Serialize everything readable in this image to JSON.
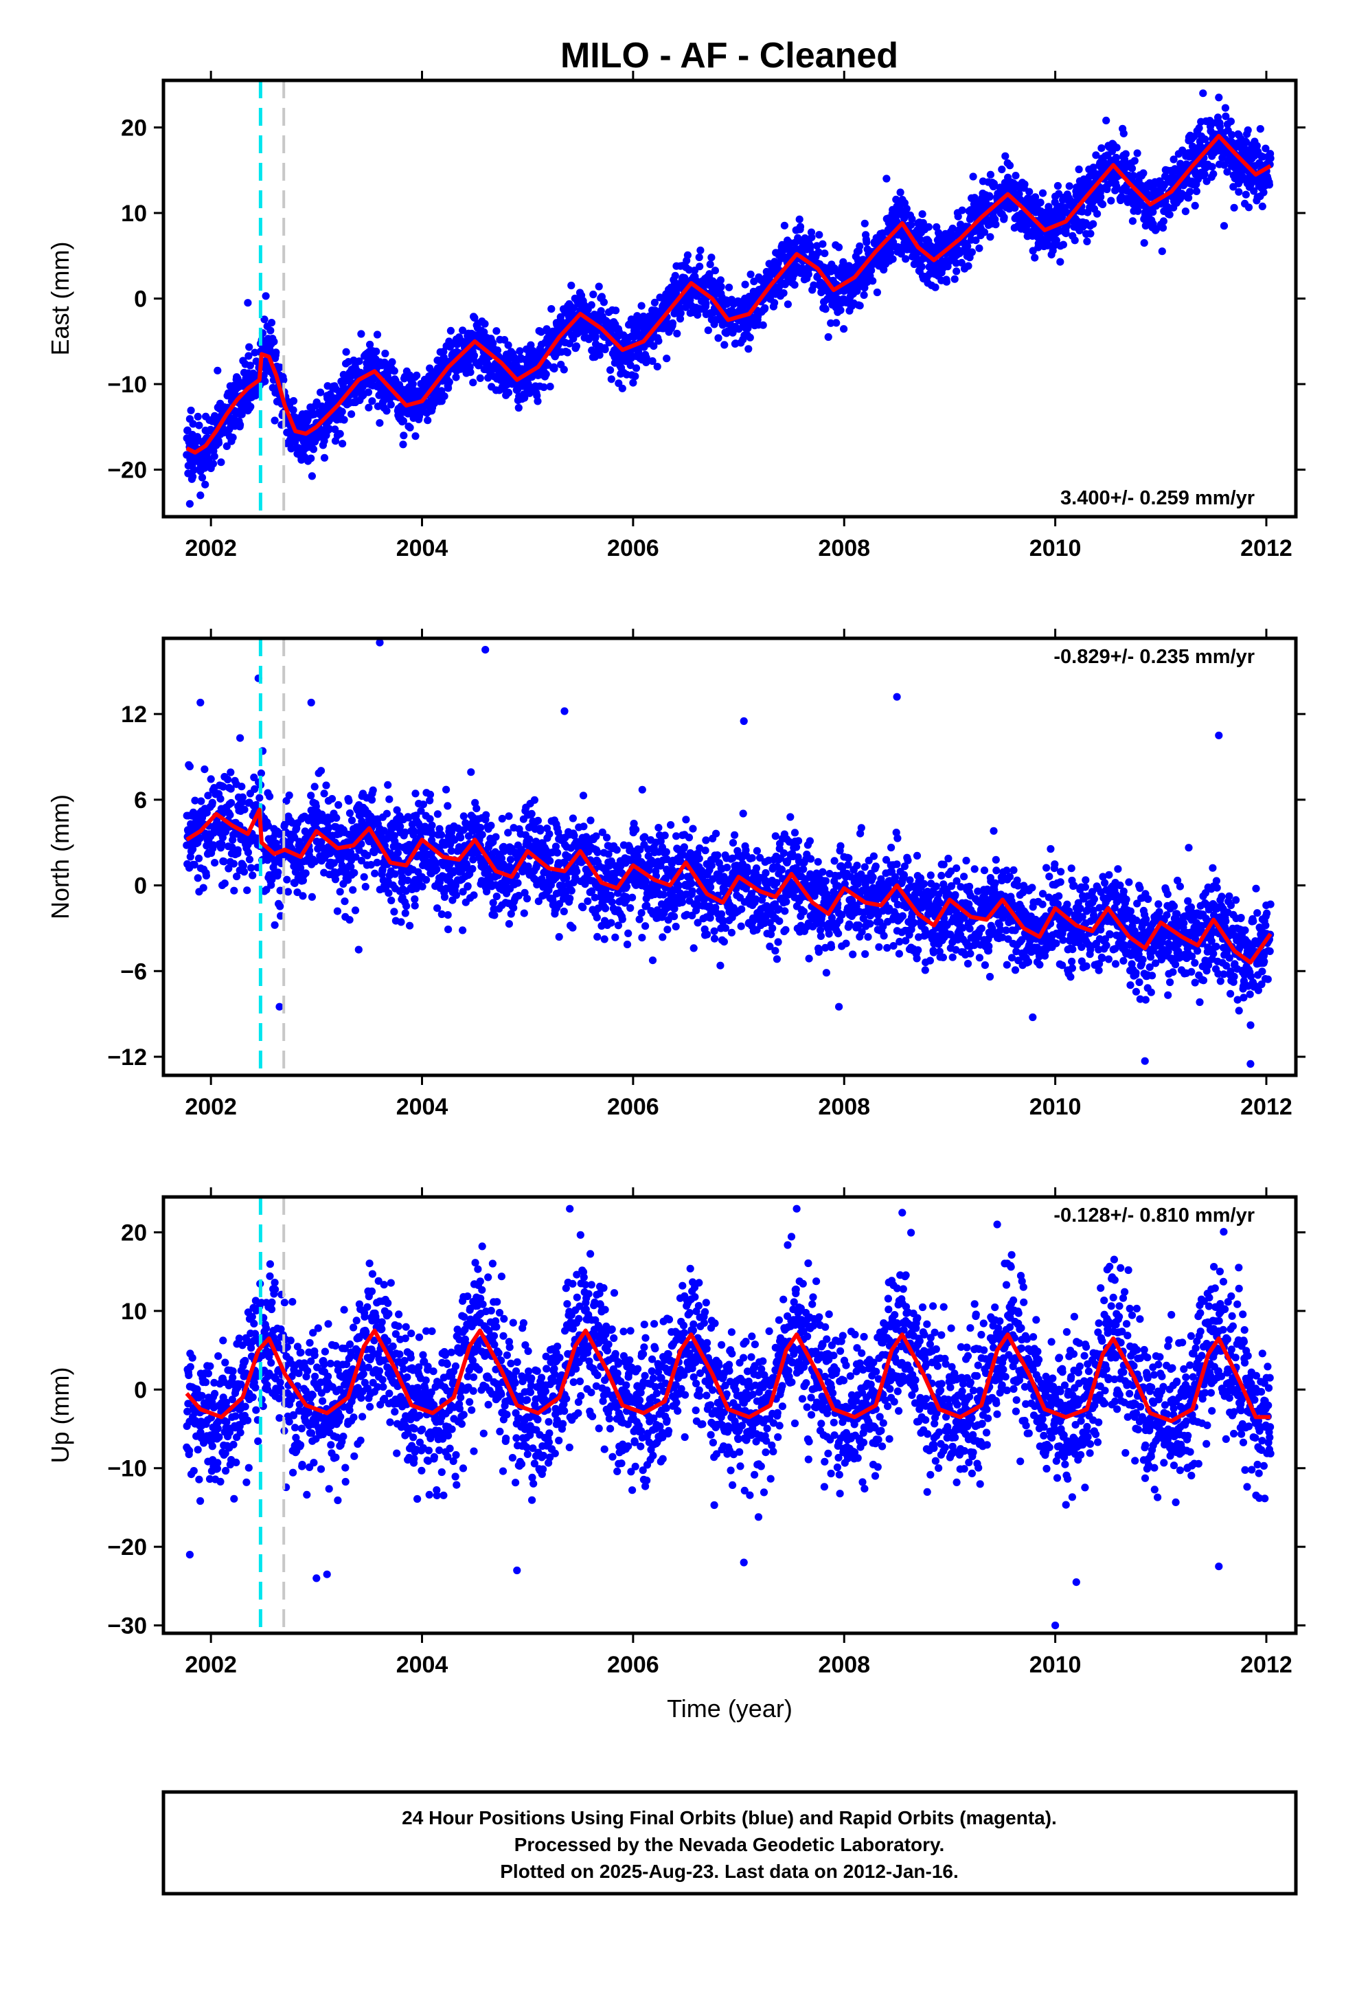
{
  "title": "MILO  - AF - Cleaned",
  "colors": {
    "points": "#0000ff",
    "model": "#ff0000",
    "offset_equipment": "#00e5ee",
    "offset_other": "#c8c8c8",
    "frame": "#000000"
  },
  "footer": {
    "line1": "24 Hour Positions Using Final Orbits (blue) and Rapid Orbits (magenta).",
    "line2": "Processed by the Nevada Geodetic Laboratory.",
    "line3": "Plotted on 2025-Aug-23. Last data on 2012-Jan-16."
  },
  "chart_data": [
    {
      "type": "scatter",
      "component": "east",
      "ylabel": "East (mm)",
      "xlabel": "",
      "xlim": [
        2001.55,
        2012.28
      ],
      "ylim": [
        -25.5,
        25.5
      ],
      "xticks": [
        2002,
        2004,
        2006,
        2008,
        2010,
        2012
      ],
      "yticks": [
        -20,
        -10,
        0,
        10,
        20
      ],
      "rate_text": "3.400+/- 0.259 mm/yr",
      "rate_position": "bottom-right",
      "data_start": 2001.77,
      "data_end": 2012.04,
      "offsets": [
        2002.47,
        2002.69
      ],
      "model": {
        "x": [
          2001.77,
          2001.85,
          2001.95,
          2002.05,
          2002.15,
          2002.25,
          2002.35,
          2002.46,
          2002.48,
          2002.55,
          2002.62,
          2002.7,
          2002.8,
          2002.9,
          2003.0,
          2003.2,
          2003.4,
          2003.55,
          2003.7,
          2003.85,
          2004.0,
          2004.25,
          2004.5,
          2004.75,
          2004.9,
          2005.1,
          2005.3,
          2005.5,
          2005.7,
          2005.9,
          2006.1,
          2006.3,
          2006.55,
          2006.75,
          2006.9,
          2007.1,
          2007.3,
          2007.55,
          2007.75,
          2007.9,
          2008.1,
          2008.3,
          2008.55,
          2008.7,
          2008.85,
          2009.1,
          2009.3,
          2009.55,
          2009.7,
          2009.9,
          2010.1,
          2010.3,
          2010.55,
          2010.7,
          2010.9,
          2011.1,
          2011.3,
          2011.55,
          2011.7,
          2011.9,
          2012.04
        ],
        "y": [
          -17.5,
          -18.0,
          -17.2,
          -15.5,
          -13.5,
          -11.8,
          -10.5,
          -9.5,
          -6.5,
          -6.8,
          -9.0,
          -12.5,
          -15.5,
          -15.8,
          -15.0,
          -12.5,
          -9.5,
          -8.5,
          -10.5,
          -12.5,
          -12.0,
          -8.0,
          -5.0,
          -7.5,
          -9.5,
          -8.0,
          -4.5,
          -1.8,
          -3.5,
          -6.0,
          -5.0,
          -2.0,
          1.8,
          0.0,
          -2.5,
          -1.8,
          1.5,
          5.2,
          3.5,
          1.0,
          2.5,
          5.5,
          8.8,
          6.0,
          4.5,
          7.0,
          9.5,
          12.2,
          10.5,
          8.0,
          9.0,
          12.0,
          15.6,
          13.5,
          11.0,
          12.5,
          15.5,
          19.0,
          17.0,
          14.5,
          15.5
        ]
      },
      "scatter_sigma": 1.8,
      "outliers": [
        {
          "x": 2011.4,
          "y": 24.0
        },
        {
          "x": 2011.55,
          "y": 23.5
        },
        {
          "x": 2002.35,
          "y": -0.5
        },
        {
          "x": 2002.52,
          "y": 0.3
        },
        {
          "x": 2007.85,
          "y": -4.5
        },
        {
          "x": 2011.6,
          "y": 8.5
        },
        {
          "x": 2001.8,
          "y": -24.0
        },
        {
          "x": 2001.9,
          "y": -23.0
        }
      ]
    },
    {
      "type": "scatter",
      "component": "north",
      "ylabel": "North (mm)",
      "xlabel": "",
      "xlim": [
        2001.55,
        2012.28
      ],
      "ylim": [
        -13.3,
        17.3
      ],
      "xticks": [
        2002,
        2004,
        2006,
        2008,
        2010,
        2012
      ],
      "yticks": [
        -12,
        -6,
        0,
        6,
        12
      ],
      "rate_text": "-0.829+/- 0.235 mm/yr",
      "rate_position": "top-right",
      "data_start": 2001.77,
      "data_end": 2012.04,
      "offsets": [
        2002.47,
        2002.69
      ],
      "model": {
        "x": [
          2001.77,
          2001.9,
          2002.05,
          2002.2,
          2002.35,
          2002.46,
          2002.48,
          2002.6,
          2002.7,
          2002.85,
          2003.0,
          2003.2,
          2003.35,
          2003.5,
          2003.7,
          2003.85,
          2004.0,
          2004.2,
          2004.35,
          2004.5,
          2004.7,
          2004.85,
          2005.0,
          2005.2,
          2005.35,
          2005.5,
          2005.7,
          2005.85,
          2006.0,
          2006.2,
          2006.35,
          2006.5,
          2006.7,
          2006.85,
          2007.0,
          2007.2,
          2007.35,
          2007.5,
          2007.7,
          2007.85,
          2008.0,
          2008.2,
          2008.35,
          2008.5,
          2008.7,
          2008.85,
          2009.0,
          2009.2,
          2009.35,
          2009.5,
          2009.7,
          2009.85,
          2010.0,
          2010.2,
          2010.35,
          2010.5,
          2010.7,
          2010.85,
          2011.0,
          2011.2,
          2011.35,
          2011.5,
          2011.7,
          2011.85,
          2012.04
        ],
        "y": [
          3.2,
          3.8,
          5.0,
          4.2,
          3.6,
          5.3,
          3.0,
          2.2,
          2.5,
          2.0,
          3.8,
          2.6,
          2.8,
          4.0,
          1.6,
          1.4,
          3.2,
          2.0,
          1.8,
          3.2,
          1.0,
          0.6,
          2.4,
          1.2,
          1.0,
          2.4,
          0.2,
          -0.2,
          1.4,
          0.4,
          0.0,
          1.6,
          -0.6,
          -1.2,
          0.6,
          -0.4,
          -0.8,
          0.8,
          -1.2,
          -2.0,
          -0.2,
          -1.2,
          -1.4,
          0.0,
          -2.0,
          -2.8,
          -1.0,
          -2.2,
          -2.4,
          -1.0,
          -3.0,
          -3.6,
          -1.6,
          -2.8,
          -3.2,
          -1.6,
          -3.6,
          -4.4,
          -2.6,
          -3.6,
          -4.2,
          -2.4,
          -4.6,
          -5.4,
          -3.4
        ]
      },
      "scatter_sigma": 1.7,
      "outliers": [
        {
          "x": 2003.6,
          "y": 17.0
        },
        {
          "x": 2004.6,
          "y": 16.5
        },
        {
          "x": 2002.45,
          "y": 14.5
        },
        {
          "x": 2001.9,
          "y": 12.8
        },
        {
          "x": 2002.95,
          "y": 12.8
        },
        {
          "x": 2005.35,
          "y": 12.2
        },
        {
          "x": 2007.05,
          "y": 11.5
        },
        {
          "x": 2008.5,
          "y": 13.2
        },
        {
          "x": 2011.55,
          "y": 10.5
        },
        {
          "x": 2003.4,
          "y": -4.5
        },
        {
          "x": 2002.65,
          "y": -8.5
        },
        {
          "x": 2007.95,
          "y": -8.5
        },
        {
          "x": 2010.85,
          "y": -12.3
        },
        {
          "x": 2011.85,
          "y": -12.5
        }
      ]
    },
    {
      "type": "scatter",
      "component": "up",
      "ylabel": "Up (mm)",
      "xlabel": "Time (year)",
      "xlim": [
        2001.55,
        2012.28
      ],
      "ylim": [
        -31.0,
        24.5
      ],
      "xticks": [
        2002,
        2004,
        2006,
        2008,
        2010,
        2012
      ],
      "yticks": [
        -30,
        -20,
        -10,
        0,
        10,
        20
      ],
      "rate_text": "-0.128+/- 0.810 mm/yr",
      "rate_position": "top-right",
      "data_start": 2001.77,
      "data_end": 2012.04,
      "offsets": [
        2002.47,
        2002.69
      ],
      "model": {
        "x": [
          2001.77,
          2001.9,
          2002.1,
          2002.3,
          2002.45,
          2002.55,
          2002.7,
          2002.9,
          2003.1,
          2003.3,
          2003.45,
          2003.55,
          2003.75,
          2003.9,
          2004.1,
          2004.3,
          2004.45,
          2004.55,
          2004.75,
          2004.9,
          2005.1,
          2005.3,
          2005.45,
          2005.55,
          2005.75,
          2005.9,
          2006.1,
          2006.3,
          2006.45,
          2006.55,
          2006.75,
          2006.9,
          2007.1,
          2007.3,
          2007.45,
          2007.55,
          2007.75,
          2007.9,
          2008.1,
          2008.3,
          2008.45,
          2008.55,
          2008.75,
          2008.9,
          2009.1,
          2009.3,
          2009.45,
          2009.55,
          2009.75,
          2009.9,
          2010.1,
          2010.3,
          2010.45,
          2010.55,
          2010.75,
          2010.9,
          2011.1,
          2011.3,
          2011.45,
          2011.55,
          2011.75,
          2011.9,
          2012.04
        ],
        "y": [
          -0.5,
          -2.5,
          -3.5,
          -1.0,
          5.0,
          6.5,
          2.0,
          -2.0,
          -3.0,
          -1.0,
          5.5,
          7.5,
          2.5,
          -2.0,
          -3.0,
          -1.0,
          5.5,
          7.5,
          2.5,
          -2.0,
          -3.0,
          -1.0,
          5.5,
          7.5,
          2.5,
          -2.0,
          -3.0,
          -1.5,
          5.0,
          7.0,
          2.0,
          -2.5,
          -3.5,
          -2.0,
          5.0,
          7.0,
          2.0,
          -2.5,
          -3.5,
          -2.0,
          5.0,
          7.0,
          2.0,
          -2.5,
          -3.5,
          -2.0,
          5.0,
          7.0,
          2.0,
          -2.5,
          -3.5,
          -2.5,
          4.5,
          6.5,
          1.5,
          -3.0,
          -4.0,
          -2.5,
          4.5,
          6.5,
          1.0,
          -3.5,
          -3.5
        ]
      },
      "scatter_sigma": 4.6,
      "outliers": [
        {
          "x": 2010.0,
          "y": -30.0
        },
        {
          "x": 2010.2,
          "y": -24.5
        },
        {
          "x": 2003.0,
          "y": -24.0
        },
        {
          "x": 2003.1,
          "y": -23.5
        },
        {
          "x": 2004.9,
          "y": -23.0
        },
        {
          "x": 2007.05,
          "y": -22.0
        },
        {
          "x": 2011.55,
          "y": -22.5
        },
        {
          "x": 2005.4,
          "y": 23.0
        },
        {
          "x": 2007.55,
          "y": 23.0
        },
        {
          "x": 2008.55,
          "y": 22.5
        },
        {
          "x": 2001.8,
          "y": -21.0
        },
        {
          "x": 2009.45,
          "y": 21.0
        }
      ]
    }
  ]
}
